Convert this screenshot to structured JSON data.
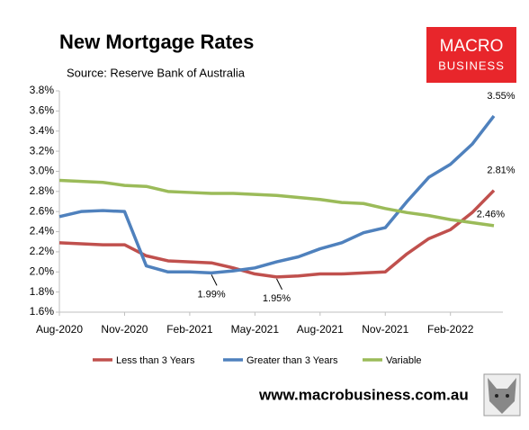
{
  "chart_data": {
    "type": "line",
    "title": "New Mortgage Rates",
    "subtitle": "Source: Reserve Bank of Australia",
    "logo": [
      "MACRO",
      "BUSINESS"
    ],
    "website": "www.macrobusiness.com.au",
    "categories": [
      "Aug-2020",
      null,
      null,
      "Nov-2020",
      null,
      null,
      "Feb-2021",
      null,
      null,
      "May-2021",
      null,
      null,
      "Aug-2021",
      null,
      null,
      "Nov-2021",
      null,
      null,
      "Feb-2022",
      null,
      null
    ],
    "series": [
      {
        "name": "Less than 3 Years",
        "color": "#c0504d",
        "values": [
          2.29,
          2.28,
          2.27,
          2.27,
          2.16,
          2.11,
          2.1,
          2.09,
          2.04,
          1.98,
          1.95,
          1.96,
          1.98,
          1.98,
          1.99,
          2.0,
          2.18,
          2.33,
          2.42,
          2.59,
          2.81
        ],
        "value_labels": [
          null,
          null,
          null,
          null,
          null,
          null,
          null,
          null,
          null,
          null,
          "1.95%",
          null,
          null,
          null,
          null,
          null,
          null,
          null,
          null,
          null,
          "2.81%"
        ]
      },
      {
        "name": "Greater than 3 Years",
        "color": "#4f81bd",
        "values": [
          2.55,
          2.6,
          2.61,
          2.6,
          2.06,
          2.0,
          2.0,
          1.99,
          2.01,
          2.04,
          2.1,
          2.15,
          2.23,
          2.29,
          2.39,
          2.44,
          2.7,
          2.94,
          3.07,
          3.27,
          3.55
        ],
        "value_labels": [
          null,
          null,
          null,
          null,
          null,
          null,
          null,
          "1.99%",
          null,
          null,
          null,
          null,
          null,
          null,
          null,
          null,
          null,
          null,
          null,
          null,
          "3.55%"
        ]
      },
      {
        "name": "Variable",
        "color": "#9bbb59",
        "values": [
          2.91,
          2.9,
          2.89,
          2.86,
          2.85,
          2.8,
          2.79,
          2.78,
          2.78,
          2.77,
          2.76,
          2.74,
          2.72,
          2.69,
          2.68,
          2.63,
          2.59,
          2.56,
          2.52,
          2.49,
          2.46
        ],
        "value_labels": [
          null,
          null,
          null,
          null,
          null,
          null,
          null,
          null,
          null,
          null,
          null,
          null,
          null,
          null,
          null,
          null,
          null,
          null,
          null,
          null,
          "2.46%"
        ]
      }
    ],
    "ylim": [
      1.6,
      3.8
    ],
    "yticks": [
      {
        "value": 1.6,
        "label": "1.6%"
      },
      {
        "value": 1.8,
        "label": "1.8%"
      },
      {
        "value": 2.0,
        "label": "2.0%"
      },
      {
        "value": 2.2,
        "label": "2.2%"
      },
      {
        "value": 2.4,
        "label": "2.4%"
      },
      {
        "value": 2.6,
        "label": "2.6%"
      },
      {
        "value": 2.8,
        "label": "2.8%"
      },
      {
        "value": 3.0,
        "label": "3.0%"
      },
      {
        "value": 3.2,
        "label": "3.2%"
      },
      {
        "value": 3.4,
        "label": "3.4%"
      },
      {
        "value": 3.6,
        "label": "3.6%"
      },
      {
        "value": 3.8,
        "label": "3.8%"
      }
    ],
    "grid": false,
    "legend": "bottom"
  }
}
